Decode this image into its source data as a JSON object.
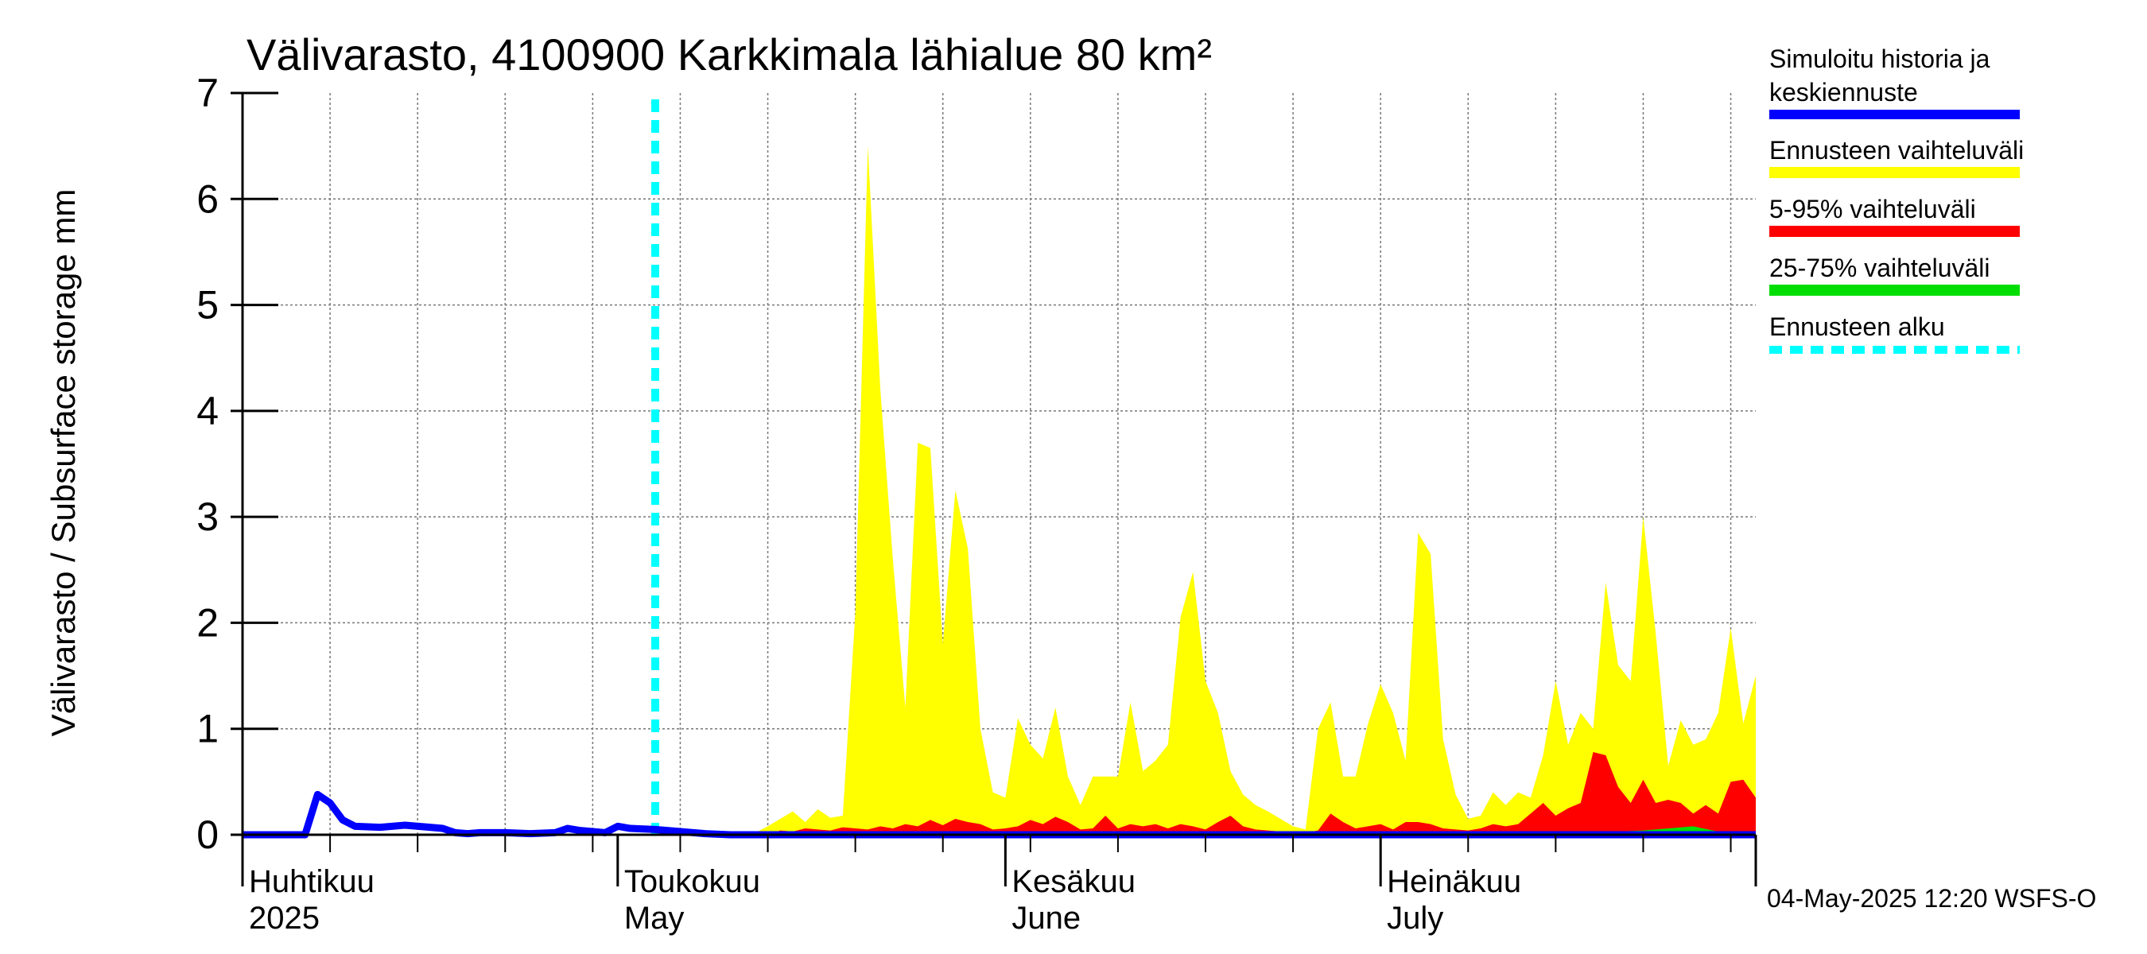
{
  "chart_data": {
    "type": "area",
    "title": "Välivarasto, 4100900 Karkkimala lähialue 80 km²",
    "ylabel": "Välivarasto / Subsurface storage  mm",
    "ylim": [
      0,
      7
    ],
    "yticks": [
      "0",
      "1",
      "2",
      "3",
      "4",
      "5",
      "6",
      "7"
    ],
    "x_start": "2025-04-01",
    "x_end": "2025-07-31",
    "grid": true,
    "legend_position": "right",
    "month_labels": [
      {
        "date": "2025-04-01",
        "line1": "Huhtikuu",
        "line2": "2025"
      },
      {
        "date": "2025-05-01",
        "line1": "Toukokuu",
        "line2": "May"
      },
      {
        "date": "2025-06-01",
        "line1": "Kesäkuu",
        "line2": "June"
      },
      {
        "date": "2025-07-01",
        "line1": "Heinäkuu",
        "line2": "July"
      }
    ],
    "forecast_start": "2025-05-04",
    "history": {
      "name": "Simuloitu historia ja keskiennuste",
      "color": "#0000ff",
      "points": [
        [
          "2025-04-01",
          0
        ],
        [
          "2025-04-06",
          0
        ],
        [
          "2025-04-07",
          0.38
        ],
        [
          "2025-04-08",
          0.3
        ],
        [
          "2025-04-09",
          0.14
        ],
        [
          "2025-04-10",
          0.08
        ],
        [
          "2025-04-12",
          0.07
        ],
        [
          "2025-04-14",
          0.09
        ],
        [
          "2025-04-16",
          0.07
        ],
        [
          "2025-04-17",
          0.06
        ],
        [
          "2025-04-18",
          0.02
        ],
        [
          "2025-04-19",
          0.01
        ],
        [
          "2025-04-20",
          0.02
        ],
        [
          "2025-04-22",
          0.02
        ],
        [
          "2025-04-24",
          0.01
        ],
        [
          "2025-04-26",
          0.02
        ],
        [
          "2025-04-27",
          0.06
        ],
        [
          "2025-04-28",
          0.04
        ],
        [
          "2025-04-30",
          0.02
        ],
        [
          "2025-05-01",
          0.08
        ],
        [
          "2025-05-02",
          0.06
        ],
        [
          "2025-05-04",
          0.05
        ],
        [
          "2025-05-06",
          0.03
        ],
        [
          "2025-05-08",
          0.01
        ],
        [
          "2025-05-10",
          0
        ],
        [
          "2025-07-31",
          0
        ]
      ]
    },
    "series": [
      {
        "name": "Ennusteen vaihteluväli",
        "color": "#ffff00",
        "points": [
          [
            "2025-05-04",
            0
          ],
          [
            "2025-05-05",
            0.06
          ],
          [
            "2025-05-06",
            0.02
          ],
          [
            "2025-05-07",
            0.02
          ],
          [
            "2025-05-08",
            0.01
          ],
          [
            "2025-05-09",
            0.01
          ],
          [
            "2025-05-10",
            0.01
          ],
          [
            "2025-05-11",
            0.02
          ],
          [
            "2025-05-12",
            0.02
          ],
          [
            "2025-05-13",
            0.08
          ],
          [
            "2025-05-14",
            0.15
          ],
          [
            "2025-05-15",
            0.22
          ],
          [
            "2025-05-16",
            0.12
          ],
          [
            "2025-05-17",
            0.24
          ],
          [
            "2025-05-18",
            0.16
          ],
          [
            "2025-05-19",
            0.18
          ],
          [
            "2025-05-20",
            2.1
          ],
          [
            "2025-05-21",
            6.5
          ],
          [
            "2025-05-22",
            4.2
          ],
          [
            "2025-05-23",
            2.6
          ],
          [
            "2025-05-24",
            1.2
          ],
          [
            "2025-05-25",
            3.7
          ],
          [
            "2025-05-26",
            3.65
          ],
          [
            "2025-05-27",
            1.8
          ],
          [
            "2025-05-28",
            3.25
          ],
          [
            "2025-05-29",
            2.7
          ],
          [
            "2025-05-30",
            1.0
          ],
          [
            "2025-05-31",
            0.4
          ],
          [
            "2025-06-01",
            0.35
          ],
          [
            "2025-06-02",
            1.1
          ],
          [
            "2025-06-03",
            0.85
          ],
          [
            "2025-06-04",
            0.72
          ],
          [
            "2025-06-05",
            1.2
          ],
          [
            "2025-06-06",
            0.55
          ],
          [
            "2025-06-07",
            0.28
          ],
          [
            "2025-06-08",
            0.55
          ],
          [
            "2025-06-09",
            0.55
          ],
          [
            "2025-06-10",
            0.55
          ],
          [
            "2025-06-11",
            1.25
          ],
          [
            "2025-06-12",
            0.6
          ],
          [
            "2025-06-13",
            0.7
          ],
          [
            "2025-06-14",
            0.85
          ],
          [
            "2025-06-15",
            2.05
          ],
          [
            "2025-06-16",
            2.48
          ],
          [
            "2025-06-17",
            1.45
          ],
          [
            "2025-06-18",
            1.15
          ],
          [
            "2025-06-19",
            0.6
          ],
          [
            "2025-06-20",
            0.38
          ],
          [
            "2025-06-21",
            0.28
          ],
          [
            "2025-06-22",
            0.22
          ],
          [
            "2025-06-23",
            0.15
          ],
          [
            "2025-06-24",
            0.08
          ],
          [
            "2025-06-25",
            0.05
          ],
          [
            "2025-06-26",
            1.0
          ],
          [
            "2025-06-27",
            1.25
          ],
          [
            "2025-06-28",
            0.55
          ],
          [
            "2025-06-29",
            0.55
          ],
          [
            "2025-06-30",
            1.05
          ],
          [
            "2025-07-01",
            1.42
          ],
          [
            "2025-07-02",
            1.15
          ],
          [
            "2025-07-03",
            0.7
          ],
          [
            "2025-07-04",
            2.85
          ],
          [
            "2025-07-05",
            2.65
          ],
          [
            "2025-07-06",
            0.9
          ],
          [
            "2025-07-07",
            0.38
          ],
          [
            "2025-07-08",
            0.15
          ],
          [
            "2025-07-09",
            0.18
          ],
          [
            "2025-07-10",
            0.4
          ],
          [
            "2025-07-11",
            0.28
          ],
          [
            "2025-07-12",
            0.4
          ],
          [
            "2025-07-13",
            0.35
          ],
          [
            "2025-07-14",
            0.75
          ],
          [
            "2025-07-15",
            1.45
          ],
          [
            "2025-07-16",
            0.85
          ],
          [
            "2025-07-17",
            1.15
          ],
          [
            "2025-07-18",
            1.0
          ],
          [
            "2025-07-19",
            2.38
          ],
          [
            "2025-07-20",
            1.6
          ],
          [
            "2025-07-21",
            1.45
          ],
          [
            "2025-07-22",
            3.0
          ],
          [
            "2025-07-23",
            1.9
          ],
          [
            "2025-07-24",
            0.65
          ],
          [
            "2025-07-25",
            1.08
          ],
          [
            "2025-07-26",
            0.85
          ],
          [
            "2025-07-27",
            0.9
          ],
          [
            "2025-07-28",
            1.15
          ],
          [
            "2025-07-29",
            1.95
          ],
          [
            "2025-07-30",
            1.05
          ],
          [
            "2025-07-31",
            1.5
          ]
        ]
      },
      {
        "name": "5-95% vaihteluväli",
        "color": "#ff0000",
        "points": [
          [
            "2025-05-13",
            0
          ],
          [
            "2025-05-14",
            0.04
          ],
          [
            "2025-05-15",
            0.03
          ],
          [
            "2025-05-16",
            0.06
          ],
          [
            "2025-05-17",
            0.05
          ],
          [
            "2025-05-18",
            0.04
          ],
          [
            "2025-05-19",
            0.07
          ],
          [
            "2025-05-20",
            0.06
          ],
          [
            "2025-05-21",
            0.05
          ],
          [
            "2025-05-22",
            0.08
          ],
          [
            "2025-05-23",
            0.06
          ],
          [
            "2025-05-24",
            0.1
          ],
          [
            "2025-05-25",
            0.08
          ],
          [
            "2025-05-26",
            0.14
          ],
          [
            "2025-05-27",
            0.09
          ],
          [
            "2025-05-28",
            0.15
          ],
          [
            "2025-05-29",
            0.12
          ],
          [
            "2025-05-30",
            0.1
          ],
          [
            "2025-05-31",
            0.05
          ],
          [
            "2025-06-01",
            0.06
          ],
          [
            "2025-06-02",
            0.08
          ],
          [
            "2025-06-03",
            0.14
          ],
          [
            "2025-06-04",
            0.1
          ],
          [
            "2025-06-05",
            0.17
          ],
          [
            "2025-06-06",
            0.12
          ],
          [
            "2025-06-07",
            0.05
          ],
          [
            "2025-06-08",
            0.06
          ],
          [
            "2025-06-09",
            0.18
          ],
          [
            "2025-06-10",
            0.06
          ],
          [
            "2025-06-11",
            0.1
          ],
          [
            "2025-06-12",
            0.08
          ],
          [
            "2025-06-13",
            0.1
          ],
          [
            "2025-06-14",
            0.06
          ],
          [
            "2025-06-15",
            0.1
          ],
          [
            "2025-06-16",
            0.08
          ],
          [
            "2025-06-17",
            0.05
          ],
          [
            "2025-06-18",
            0.12
          ],
          [
            "2025-06-19",
            0.18
          ],
          [
            "2025-06-20",
            0.08
          ],
          [
            "2025-06-21",
            0.05
          ],
          [
            "2025-06-22",
            0.04
          ],
          [
            "2025-06-23",
            0.03
          ],
          [
            "2025-06-24",
            0.02
          ],
          [
            "2025-06-25",
            0.02
          ],
          [
            "2025-06-26",
            0.04
          ],
          [
            "2025-06-27",
            0.2
          ],
          [
            "2025-06-28",
            0.12
          ],
          [
            "2025-06-29",
            0.06
          ],
          [
            "2025-06-30",
            0.08
          ],
          [
            "2025-07-01",
            0.1
          ],
          [
            "2025-07-02",
            0.05
          ],
          [
            "2025-07-03",
            0.12
          ],
          [
            "2025-07-04",
            0.12
          ],
          [
            "2025-07-05",
            0.1
          ],
          [
            "2025-07-06",
            0.06
          ],
          [
            "2025-07-07",
            0.05
          ],
          [
            "2025-07-08",
            0.04
          ],
          [
            "2025-07-09",
            0.06
          ],
          [
            "2025-07-10",
            0.1
          ],
          [
            "2025-07-11",
            0.08
          ],
          [
            "2025-07-12",
            0.1
          ],
          [
            "2025-07-13",
            0.2
          ],
          [
            "2025-07-14",
            0.3
          ],
          [
            "2025-07-15",
            0.18
          ],
          [
            "2025-07-16",
            0.25
          ],
          [
            "2025-07-17",
            0.3
          ],
          [
            "2025-07-18",
            0.78
          ],
          [
            "2025-07-19",
            0.75
          ],
          [
            "2025-07-20",
            0.45
          ],
          [
            "2025-07-21",
            0.3
          ],
          [
            "2025-07-22",
            0.52
          ],
          [
            "2025-07-23",
            0.3
          ],
          [
            "2025-07-24",
            0.33
          ],
          [
            "2025-07-25",
            0.3
          ],
          [
            "2025-07-26",
            0.2
          ],
          [
            "2025-07-27",
            0.28
          ],
          [
            "2025-07-28",
            0.2
          ],
          [
            "2025-07-29",
            0.5
          ],
          [
            "2025-07-30",
            0.52
          ],
          [
            "2025-07-31",
            0.35
          ]
        ]
      },
      {
        "name": "25-75% vaihteluväli",
        "color": "#00dd00",
        "points": [
          [
            "2025-07-14",
            0
          ],
          [
            "2025-07-18",
            0.02
          ],
          [
            "2025-07-22",
            0.04
          ],
          [
            "2025-07-24",
            0.06
          ],
          [
            "2025-07-26",
            0.08
          ],
          [
            "2025-07-28",
            0.03
          ],
          [
            "2025-07-31",
            0.02
          ]
        ]
      }
    ],
    "forecast_start_label": "Ennusteen alku",
    "forecast_start_color": "#00ffff"
  },
  "legend": {
    "history_line1": "Simuloitu historia ja",
    "history_line2": "keskiennuste",
    "range_full": "Ennusteen vaihteluväli",
    "range_5_95": "5-95% vaihteluväli",
    "range_25_75": "25-75% vaihteluväli",
    "forecast_start": "Ennusteen alku"
  },
  "footer": "04-May-2025 12:20 WSFS-O"
}
